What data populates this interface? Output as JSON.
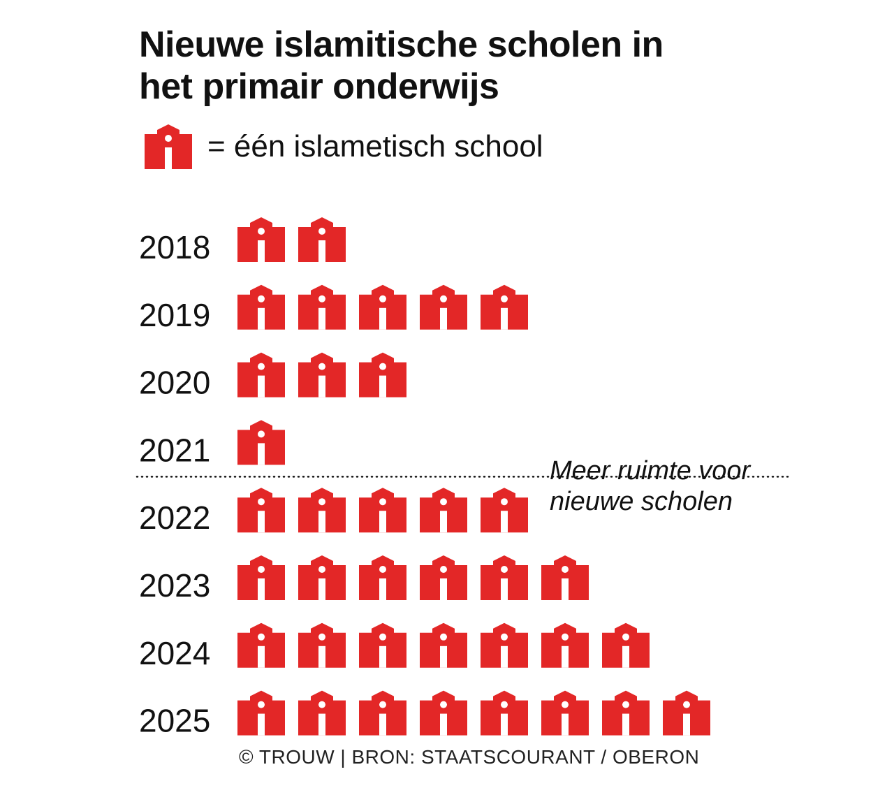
{
  "title_line1": "Nieuwe islamitische scholen in",
  "title_line2": "het primair onderwijs",
  "legend": {
    "text": "= één islametisch school",
    "icon": "school-house-icon"
  },
  "annotation": {
    "line1": "Meer ruimte voor",
    "line2": "nieuwe scholen"
  },
  "source": "© TROUW | BRON: STAATSCOURANT / OBERON",
  "colors": {
    "icon": "#e32727",
    "text": "#111111"
  },
  "chart_data": {
    "type": "pictogram",
    "unit": "één islametisch school",
    "categories": [
      "2018",
      "2019",
      "2020",
      "2021",
      "2022",
      "2023",
      "2024",
      "2025"
    ],
    "values": [
      2,
      5,
      3,
      1,
      5,
      6,
      7,
      8
    ],
    "divider_after": "2021"
  }
}
